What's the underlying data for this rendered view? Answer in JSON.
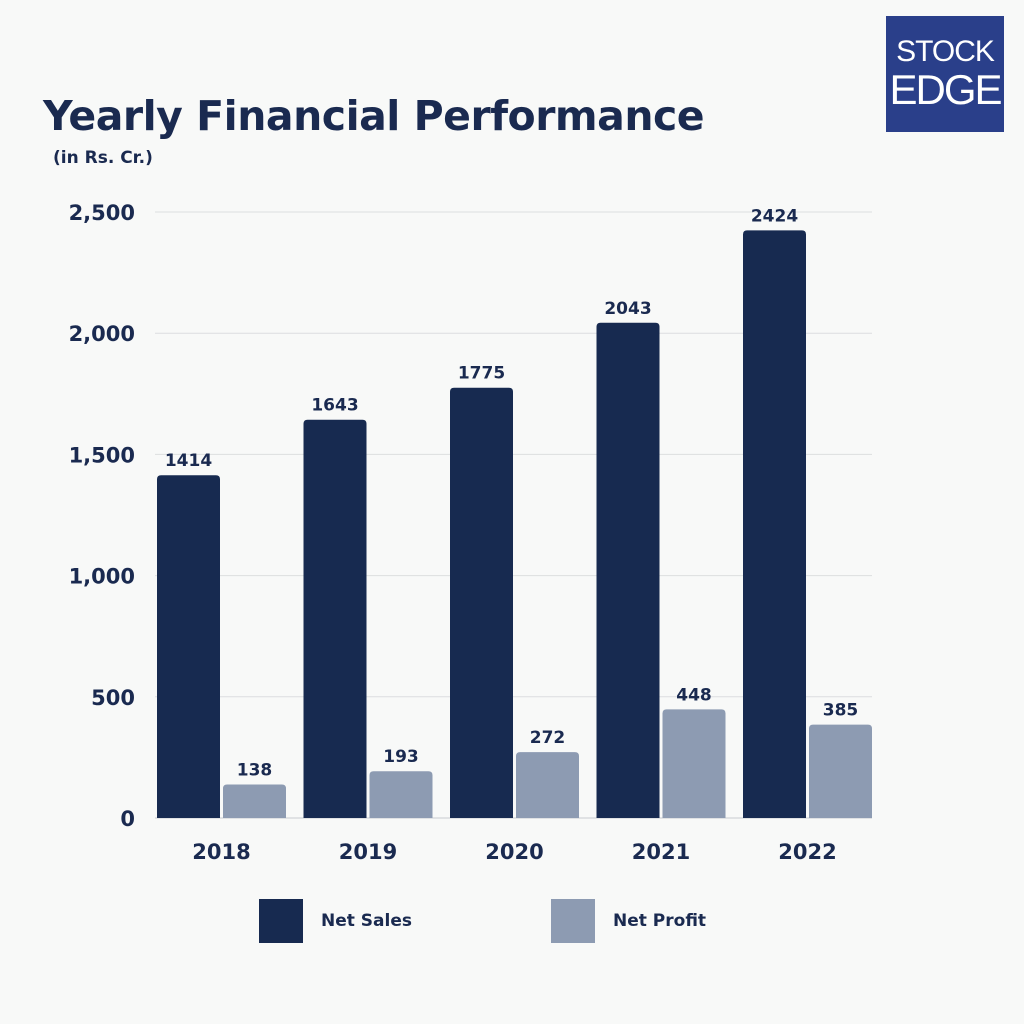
{
  "header": {
    "title": "Yearly Financial Performance",
    "subtitle": "(in Rs. Cr.)"
  },
  "logo": {
    "line1": "STOCK",
    "line2": "EDGE",
    "background": "#2a3f8a"
  },
  "legend": {
    "placement": "bottom",
    "items": [
      {
        "label": "Net Sales",
        "color": "#172a50"
      },
      {
        "label": "Net Profit",
        "color": "#8d9bb2"
      }
    ]
  },
  "chart_data": {
    "type": "bar",
    "categories": [
      "2018",
      "2019",
      "2020",
      "2021",
      "2022"
    ],
    "series": [
      {
        "name": "Net Sales",
        "values": [
          1414,
          1643,
          1775,
          2043,
          2424
        ],
        "color": "#172a50"
      },
      {
        "name": "Net Profit",
        "values": [
          138,
          193,
          272,
          448,
          385
        ],
        "color": "#8d9bb2"
      }
    ],
    "title": "Yearly Financial Performance",
    "subtitle": "(in Rs. Cr.)",
    "xlabel": "",
    "ylabel": "",
    "ylim": [
      0,
      2500
    ],
    "yticks": [
      0,
      500,
      1000,
      1500,
      2000,
      2500
    ],
    "ytick_labels": [
      "0",
      "500",
      "1,000",
      "1,500",
      "2,000",
      "2,500"
    ],
    "grid": true,
    "data_labels": true,
    "legend_position": "bottom"
  }
}
